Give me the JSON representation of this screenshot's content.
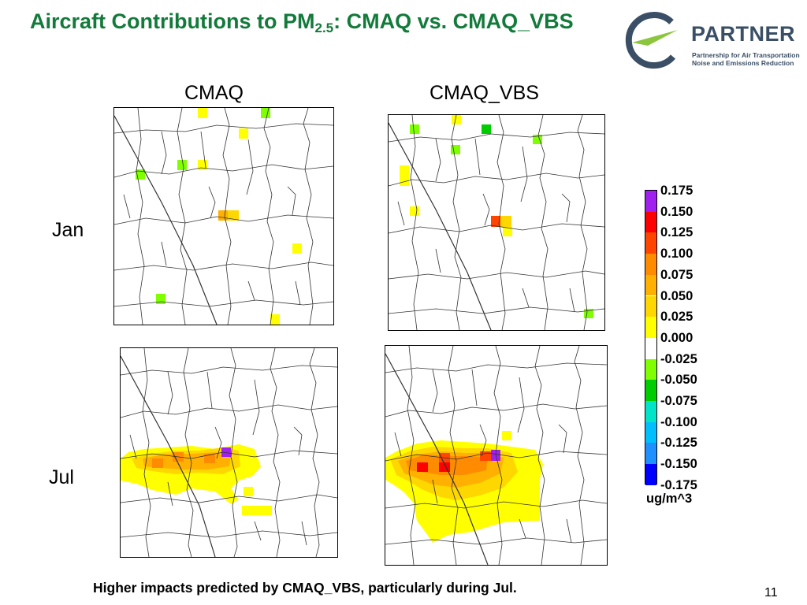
{
  "slide": {
    "title_main": "Aircraft Contributions to PM",
    "title_sub": "2.5",
    "title_rest": ": CMAQ vs. CMAQ_VBS",
    "caption": "Higher impacts predicted by CMAQ_VBS, particularly during Jul.",
    "page_number": "11"
  },
  "logo": {
    "name": "PARTNER",
    "tagline_line1": "Partnership for Air Transportation",
    "tagline_line2": "Noise and Emissions Reduction",
    "colors": {
      "ring": "#3a4f66",
      "arrow": "#8cc63f"
    }
  },
  "columns": [
    "CMAQ",
    "CMAQ_VBS"
  ],
  "rows": [
    "Jan",
    "Jul"
  ],
  "legend": {
    "levels": [
      "0.175",
      "0.150",
      "0.125",
      "0.100",
      "0.075",
      "0.050",
      "0.025",
      "0.000",
      "-0.025",
      "-0.050",
      "-0.075",
      "-0.100",
      "-0.125",
      "-0.150",
      "-0.175"
    ],
    "colors": [
      "#a020f0",
      "#ff0000",
      "#ff4500",
      "#ff8c00",
      "#ffb000",
      "#ffd700",
      "#ffff00",
      "#ffffff",
      "#ffffff",
      "#7fff00",
      "#00cd00",
      "#00e5c8",
      "#00bfff",
      "#1e90ff",
      "#0000ff"
    ],
    "units": "ug/m^3"
  }
}
